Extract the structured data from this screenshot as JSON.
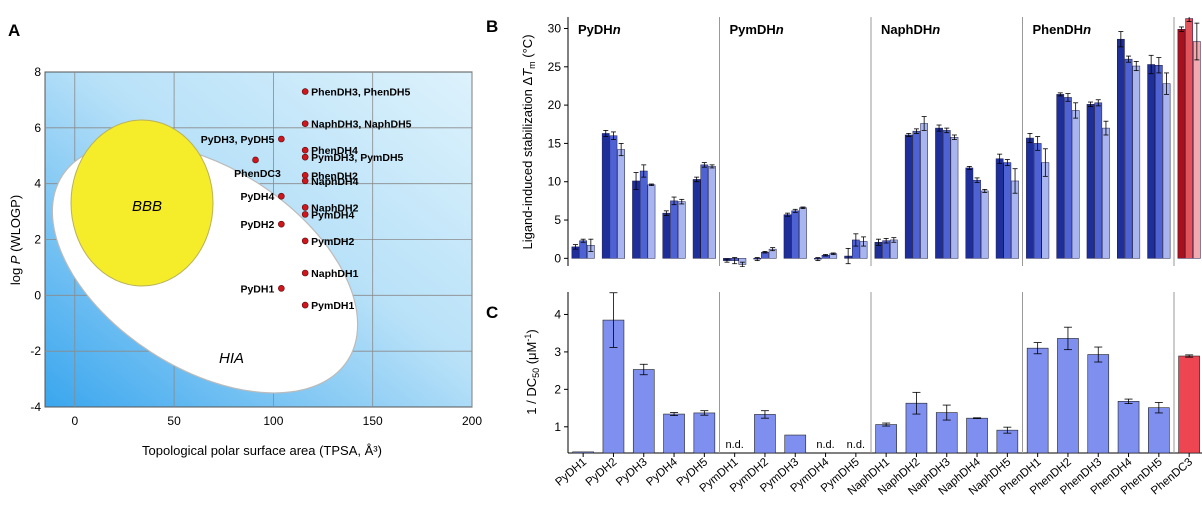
{
  "panels": {
    "a": "A",
    "b": "B",
    "c": "C"
  },
  "colors": {
    "bg_gradient_start": "#3aa6ee",
    "bg_gradient_end": "#ddf2fc",
    "hia": "#ffffff",
    "bbb": "#f5ec2a",
    "point": "#d0161c",
    "pyd_dark": "#1f2f9a",
    "pyd_mid": "#4f62d4",
    "pyd_light": "#a9b5ee",
    "phendc3_dark": "#a5121d",
    "phendc3_mid": "#e2535a",
    "phendc3_light": "#f2aaae",
    "c_bar": "#7f8ff0",
    "c_bar_red": "#ee4552"
  },
  "chart_data": [
    {
      "id": "A",
      "type": "scatter",
      "xlabel": "Topological polar surface area (TPSA, Å³)",
      "ylabel": "log P (WLOGP)",
      "xlim": [
        -15,
        200
      ],
      "ylim": [
        -4,
        8
      ],
      "xticks": [
        "0",
        "50",
        "100",
        "150",
        "200"
      ],
      "yticks": [
        "-4",
        "-2",
        "0",
        "2",
        "4",
        "6",
        "8"
      ],
      "grid": true,
      "regions": [
        {
          "label": "BBB"
        },
        {
          "label": "HIA"
        }
      ],
      "points": [
        {
          "x": 116,
          "y": 7.3,
          "label": "PhenDH3, PhenDH5",
          "pos": "right"
        },
        {
          "x": 116,
          "y": 6.15,
          "label": "NaphDH3, NaphDH5",
          "pos": "right"
        },
        {
          "x": 104,
          "y": 5.6,
          "label": "PyDH3, PyDH5",
          "pos": "left"
        },
        {
          "x": 116,
          "y": 5.2,
          "label": "PhenDH4",
          "pos": "right"
        },
        {
          "x": 116,
          "y": 4.95,
          "label": "PymDH3, PymDH5",
          "pos": "right"
        },
        {
          "x": 91,
          "y": 4.85,
          "label": "PhenDC3",
          "pos": "left-below"
        },
        {
          "x": 116,
          "y": 4.3,
          "label": "PhenDH2",
          "pos": "right"
        },
        {
          "x": 116,
          "y": 4.1,
          "label": "NaphDH4",
          "pos": "right"
        },
        {
          "x": 104,
          "y": 3.55,
          "label": "PyDH4",
          "pos": "left"
        },
        {
          "x": 116,
          "y": 3.15,
          "label": "NaphDH2",
          "pos": "right"
        },
        {
          "x": 116,
          "y": 2.9,
          "label": "PymDH4",
          "pos": "right"
        },
        {
          "x": 104,
          "y": 2.55,
          "label": "PyDH2",
          "pos": "left"
        },
        {
          "x": 116,
          "y": 1.95,
          "label": "PymDH2",
          "pos": "right"
        },
        {
          "x": 116,
          "y": 0.8,
          "label": "NaphDH1",
          "pos": "right"
        },
        {
          "x": 104,
          "y": 0.25,
          "label": "PyDH1",
          "pos": "left"
        },
        {
          "x": 116,
          "y": -0.35,
          "label": "PymDH1",
          "pos": "right"
        }
      ]
    },
    {
      "id": "B",
      "type": "bar",
      "ylabel_prefix": "Ligand-induced stabilization Δ",
      "ylabel_T": "T",
      "ylabel_sub": "m",
      "ylabel_suffix": " (°C)",
      "ylim": [
        -1,
        31.5
      ],
      "yticks": [
        "0",
        "5",
        "10",
        "15",
        "20",
        "25",
        "30"
      ],
      "group_labels": [
        {
          "prefix": "PyDH",
          "n": "n"
        },
        {
          "prefix": "PymDH",
          "n": "n"
        },
        {
          "prefix": "NaphDH",
          "n": "n"
        },
        {
          "prefix": "PhenDH",
          "n": "n"
        }
      ],
      "categories": [
        "PyDH1",
        "PyDH2",
        "PyDH3",
        "PyDH4",
        "PyDH5",
        "PymDH1",
        "PymDH2",
        "PymDH3",
        "PymDH4",
        "PymDH5",
        "NaphDH1",
        "NaphDH2",
        "NaphDH3",
        "NaphDH4",
        "NaphDH5",
        "PhenDH1",
        "PhenDH2",
        "PhenDH3",
        "PhenDH4",
        "PhenDH5",
        "PhenDC3"
      ],
      "series": [
        {
          "values": [
            1.5,
            16.3,
            10.1,
            5.9,
            10.3,
            -0.3,
            -0.1,
            5.7,
            -0.1,
            0.3,
            2.1,
            16.1,
            17.0,
            11.8,
            13.0,
            15.7,
            21.4,
            20.1,
            28.6,
            25.3,
            29.9
          ],
          "errors": [
            0.3,
            0.4,
            1.1,
            0.3,
            0.3,
            0.2,
            0.2,
            0.2,
            0.2,
            1.0,
            0.4,
            0.2,
            0.4,
            0.2,
            0.6,
            0.6,
            0.2,
            0.3,
            1.0,
            1.2,
            0.3
          ]
        },
        {
          "values": [
            2.3,
            16.0,
            11.4,
            7.5,
            12.2,
            -0.3,
            0.8,
            6.2,
            0.4,
            2.4,
            2.3,
            16.6,
            16.7,
            10.2,
            12.5,
            15.0,
            21.0,
            20.3,
            26.0,
            25.2,
            31.3
          ],
          "errors": [
            0.2,
            0.5,
            0.8,
            0.5,
            0.3,
            0.4,
            0.1,
            0.2,
            0.1,
            0.8,
            0.3,
            0.3,
            0.3,
            0.3,
            0.4,
            0.9,
            0.5,
            0.4,
            0.4,
            1.0,
            0.4
          ]
        },
        {
          "values": [
            1.7,
            14.2,
            9.6,
            7.4,
            12.0,
            -0.8,
            1.2,
            6.6,
            0.6,
            2.2,
            2.4,
            17.6,
            15.8,
            8.8,
            10.1,
            12.5,
            19.3,
            17.0,
            25.1,
            22.8,
            28.3
          ],
          "errors": [
            0.8,
            0.8,
            0.1,
            0.3,
            0.2,
            0.3,
            0.2,
            0.1,
            0.1,
            0.6,
            0.3,
            0.9,
            0.3,
            0.2,
            1.6,
            1.8,
            1.0,
            0.9,
            0.6,
            1.4,
            2.4
          ]
        }
      ]
    },
    {
      "id": "C",
      "type": "bar",
      "ylabel_prefix": "1 / DC",
      "ylabel_sub": "50",
      "ylabel_mid": " (μM",
      "ylabel_sup": "-1",
      "ylabel_suffix": ")",
      "ylim": [
        0.3,
        4.6
      ],
      "yticks": [
        "1",
        "2",
        "3",
        "4"
      ],
      "categories": [
        "PyDH1",
        "PyDH2",
        "PyDH3",
        "PyDH4",
        "PyDH5",
        "PymDH1",
        "PymDH2",
        "PymDH3",
        "PymDH4",
        "PymDH5",
        "NaphDH1",
        "NaphDH2",
        "NaphDH3",
        "NaphDH4",
        "NaphDH5",
        "PhenDH1",
        "PhenDH2",
        "PhenDH3",
        "PhenDH4",
        "PhenDH5",
        "PhenDC3"
      ],
      "values": [
        0.33,
        3.85,
        2.53,
        1.34,
        1.37,
        null,
        1.33,
        0.78,
        null,
        null,
        1.06,
        1.63,
        1.38,
        1.23,
        0.91,
        3.1,
        3.36,
        2.93,
        1.68,
        1.51,
        2.89
      ],
      "errors": [
        0.0,
        0.73,
        0.14,
        0.04,
        0.06,
        null,
        0.1,
        0.0,
        null,
        null,
        0.04,
        0.29,
        0.2,
        0.01,
        0.08,
        0.15,
        0.3,
        0.2,
        0.06,
        0.14,
        0.03
      ],
      "nd_label": "n.d."
    }
  ]
}
